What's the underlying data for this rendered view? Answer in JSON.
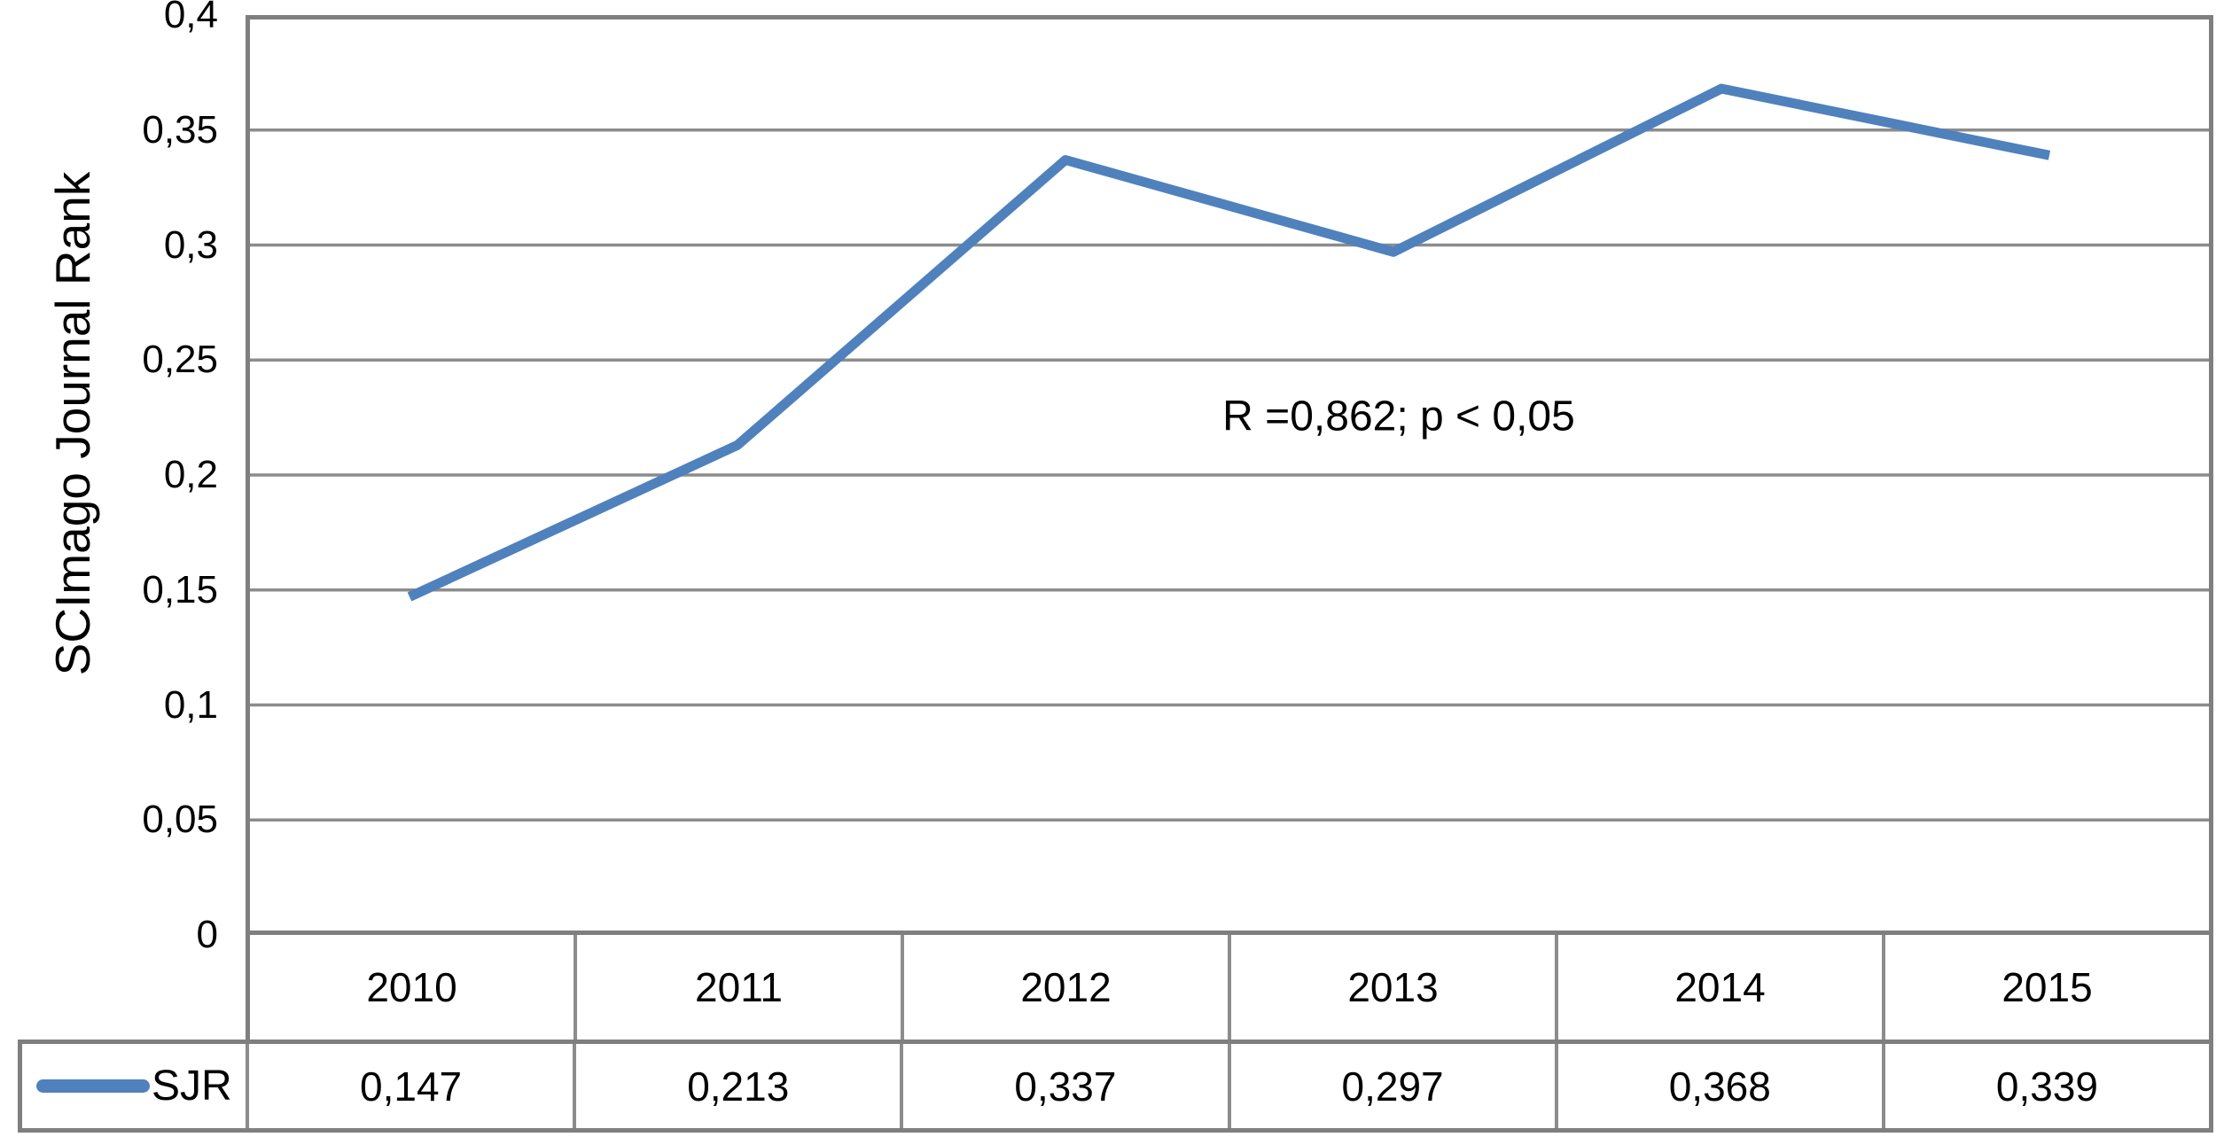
{
  "chart_data": {
    "type": "line",
    "title": "",
    "xlabel": "",
    "ylabel": "SCImago Journal Rank",
    "categories": [
      "2010",
      "2011",
      "2012",
      "2013",
      "2014",
      "2015"
    ],
    "series": [
      {
        "name": "SJR",
        "values": [
          0.147,
          0.213,
          0.337,
          0.297,
          0.368,
          0.339
        ],
        "value_labels": [
          "0,147",
          "0,213",
          "0,337",
          "0,297",
          "0,368",
          "0,339"
        ]
      }
    ],
    "ylim": [
      0,
      0.4
    ],
    "ytick_step": 0.05,
    "ytick_labels": [
      "0",
      "0,05",
      "0,1",
      "0,15",
      "0,2",
      "0,25",
      "0,3",
      "0,35",
      "0,4"
    ],
    "grid": true,
    "legend_position": "table-row-left",
    "annotation": "R =0,862; p < 0,05"
  },
  "colors": {
    "line": "#4F81BD",
    "grid": "#8C8C8C",
    "border": "#7F7F7F",
    "text": "#000000",
    "background": "#FFFFFF"
  }
}
